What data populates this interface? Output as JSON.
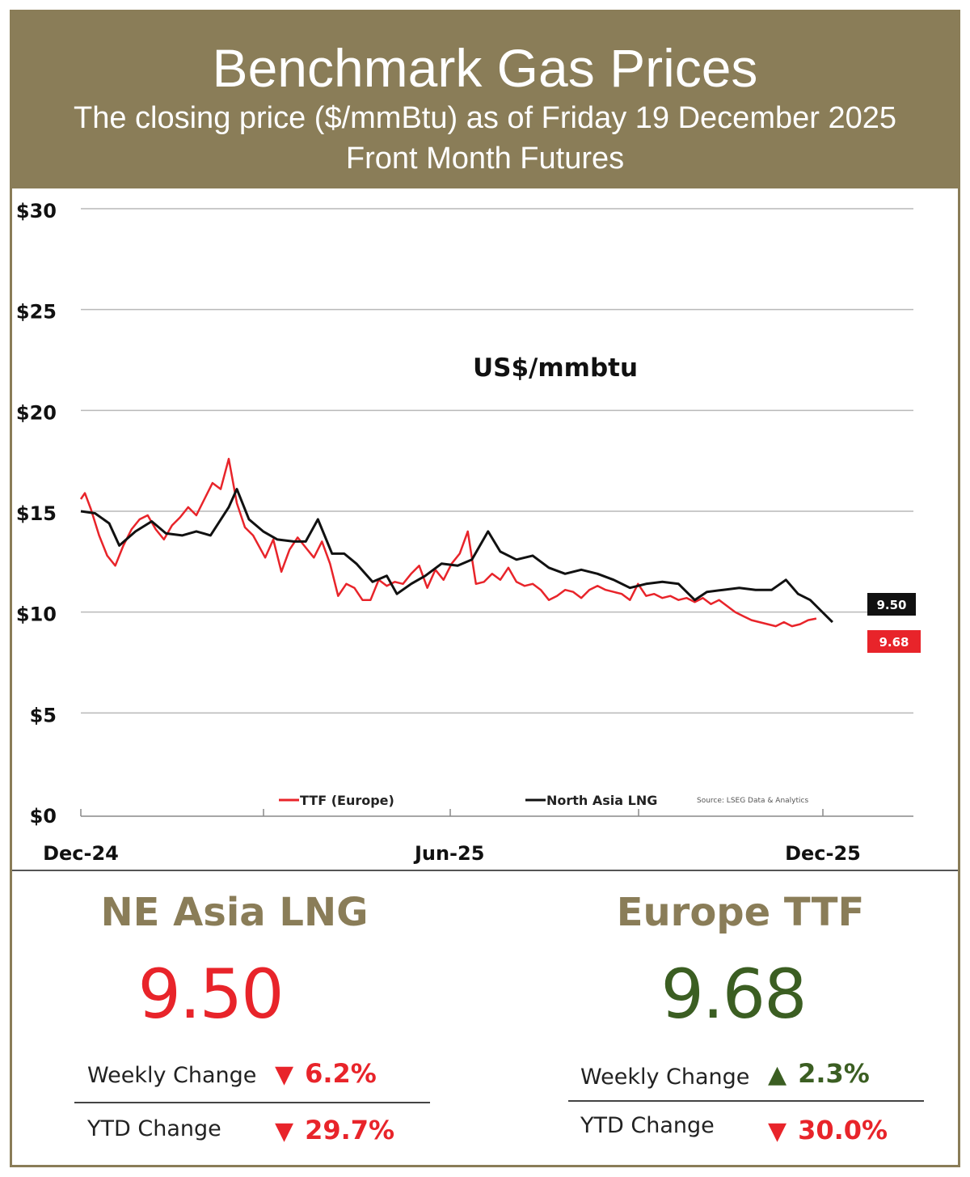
{
  "header": {
    "title": "Benchmark Gas Prices",
    "subtitle": "The closing price ($/mmBtu) as of Friday 19 December 2025",
    "subtitle2": "Front Month  Futures",
    "background": "#8a7d58"
  },
  "chart_data": {
    "type": "line",
    "title": "US$/mmbtu",
    "y_tick_labels": [
      "$0",
      "$5",
      "$10",
      "$15",
      "$20",
      "$25",
      "$30"
    ],
    "y_ticks": [
      0,
      5,
      10,
      15,
      20,
      25,
      30
    ],
    "ylim": [
      0,
      30
    ],
    "x_tick_labels": [
      "Dec-24",
      "Jun-25",
      "Dec-25"
    ],
    "x_tick_dates": [
      "2024-12-01",
      "2025-06-01",
      "2025-12-01"
    ],
    "xlim": [
      "2024-12-01",
      "2025-12-19"
    ],
    "grid": true,
    "legend_position": "bottom",
    "source_note": "Source: LSEG Data & Analytics",
    "series": [
      {
        "name": "TTF (Europe)",
        "color": "#e8242a",
        "end_label": "9.68",
        "points": [
          [
            "2024-12-01",
            15.6
          ],
          [
            "2024-12-03",
            15.9
          ],
          [
            "2024-12-06",
            15.1
          ],
          [
            "2024-12-10",
            13.8
          ],
          [
            "2024-12-14",
            12.8
          ],
          [
            "2024-12-18",
            12.3
          ],
          [
            "2024-12-22",
            13.3
          ],
          [
            "2024-12-26",
            14.1
          ],
          [
            "2024-12-30",
            14.6
          ],
          [
            "2025-01-03",
            14.8
          ],
          [
            "2025-01-07",
            14.1
          ],
          [
            "2025-01-11",
            13.6
          ],
          [
            "2025-01-15",
            14.3
          ],
          [
            "2025-01-19",
            14.7
          ],
          [
            "2025-01-23",
            15.2
          ],
          [
            "2025-01-27",
            14.8
          ],
          [
            "2025-01-31",
            15.6
          ],
          [
            "2025-02-04",
            16.4
          ],
          [
            "2025-02-08",
            16.1
          ],
          [
            "2025-02-12",
            17.6
          ],
          [
            "2025-02-16",
            15.4
          ],
          [
            "2025-02-20",
            14.2
          ],
          [
            "2025-02-24",
            13.8
          ],
          [
            "2025-03-02",
            12.7
          ],
          [
            "2025-03-06",
            13.6
          ],
          [
            "2025-03-10",
            12.0
          ],
          [
            "2025-03-14",
            13.1
          ],
          [
            "2025-03-18",
            13.7
          ],
          [
            "2025-03-22",
            13.2
          ],
          [
            "2025-03-26",
            12.7
          ],
          [
            "2025-03-30",
            13.5
          ],
          [
            "2025-04-03",
            12.4
          ],
          [
            "2025-04-07",
            10.8
          ],
          [
            "2025-04-11",
            11.4
          ],
          [
            "2025-04-15",
            11.2
          ],
          [
            "2025-04-19",
            10.6
          ],
          [
            "2025-04-23",
            10.6
          ],
          [
            "2025-04-27",
            11.6
          ],
          [
            "2025-05-01",
            11.3
          ],
          [
            "2025-05-05",
            11.5
          ],
          [
            "2025-05-09",
            11.4
          ],
          [
            "2025-05-13",
            11.9
          ],
          [
            "2025-05-17",
            12.3
          ],
          [
            "2025-05-21",
            11.2
          ],
          [
            "2025-05-25",
            12.1
          ],
          [
            "2025-05-29",
            11.6
          ],
          [
            "2025-06-02",
            12.4
          ],
          [
            "2025-06-06",
            12.9
          ],
          [
            "2025-06-10",
            14.0
          ],
          [
            "2025-06-14",
            11.4
          ],
          [
            "2025-06-18",
            11.5
          ],
          [
            "2025-06-22",
            11.9
          ],
          [
            "2025-06-26",
            11.6
          ],
          [
            "2025-06-30",
            12.2
          ],
          [
            "2025-07-04",
            11.5
          ],
          [
            "2025-07-08",
            11.3
          ],
          [
            "2025-07-12",
            11.4
          ],
          [
            "2025-07-16",
            11.1
          ],
          [
            "2025-07-20",
            10.6
          ],
          [
            "2025-07-24",
            10.8
          ],
          [
            "2025-07-28",
            11.1
          ],
          [
            "2025-08-01",
            11.0
          ],
          [
            "2025-08-05",
            10.7
          ],
          [
            "2025-08-09",
            11.1
          ],
          [
            "2025-08-13",
            11.3
          ],
          [
            "2025-08-17",
            11.1
          ],
          [
            "2025-08-21",
            11.0
          ],
          [
            "2025-08-25",
            10.9
          ],
          [
            "2025-08-29",
            10.6
          ],
          [
            "2025-09-02",
            11.4
          ],
          [
            "2025-09-06",
            10.8
          ],
          [
            "2025-09-10",
            10.9
          ],
          [
            "2025-09-14",
            10.7
          ],
          [
            "2025-09-18",
            10.8
          ],
          [
            "2025-09-22",
            10.6
          ],
          [
            "2025-09-26",
            10.7
          ],
          [
            "2025-09-30",
            10.5
          ],
          [
            "2025-10-04",
            10.7
          ],
          [
            "2025-10-08",
            10.4
          ],
          [
            "2025-10-12",
            10.6
          ],
          [
            "2025-10-16",
            10.3
          ],
          [
            "2025-10-20",
            10.0
          ],
          [
            "2025-10-24",
            9.8
          ],
          [
            "2025-10-28",
            9.6
          ],
          [
            "2025-11-01",
            9.5
          ],
          [
            "2025-11-05",
            9.4
          ],
          [
            "2025-11-09",
            9.3
          ],
          [
            "2025-11-13",
            9.5
          ],
          [
            "2025-11-17",
            9.3
          ],
          [
            "2025-11-21",
            9.4
          ],
          [
            "2025-11-25",
            9.6
          ],
          [
            "2025-11-29",
            9.68
          ]
        ]
      },
      {
        "name": "North Asia LNG",
        "color": "#111111",
        "end_label": "9.50",
        "points": [
          [
            "2024-12-01",
            15.0
          ],
          [
            "2024-12-08",
            14.9
          ],
          [
            "2024-12-15",
            14.4
          ],
          [
            "2024-12-20",
            13.3
          ],
          [
            "2024-12-28",
            14.0
          ],
          [
            "2025-01-05",
            14.5
          ],
          [
            "2025-01-12",
            13.9
          ],
          [
            "2025-01-20",
            13.8
          ],
          [
            "2025-01-27",
            14.0
          ],
          [
            "2025-02-03",
            13.8
          ],
          [
            "2025-02-12",
            15.2
          ],
          [
            "2025-02-16",
            16.1
          ],
          [
            "2025-02-22",
            14.6
          ],
          [
            "2025-03-01",
            14.0
          ],
          [
            "2025-03-08",
            13.6
          ],
          [
            "2025-03-16",
            13.5
          ],
          [
            "2025-03-22",
            13.5
          ],
          [
            "2025-03-28",
            14.6
          ],
          [
            "2025-04-04",
            12.9
          ],
          [
            "2025-04-10",
            12.9
          ],
          [
            "2025-04-16",
            12.4
          ],
          [
            "2025-04-24",
            11.5
          ],
          [
            "2025-05-01",
            11.8
          ],
          [
            "2025-05-06",
            10.9
          ],
          [
            "2025-05-13",
            11.4
          ],
          [
            "2025-05-20",
            11.8
          ],
          [
            "2025-05-28",
            12.4
          ],
          [
            "2025-06-05",
            12.3
          ],
          [
            "2025-06-12",
            12.6
          ],
          [
            "2025-06-20",
            14.0
          ],
          [
            "2025-06-26",
            13.0
          ],
          [
            "2025-07-04",
            12.6
          ],
          [
            "2025-07-12",
            12.8
          ],
          [
            "2025-07-20",
            12.2
          ],
          [
            "2025-07-28",
            11.9
          ],
          [
            "2025-08-05",
            12.1
          ],
          [
            "2025-08-13",
            11.9
          ],
          [
            "2025-08-21",
            11.6
          ],
          [
            "2025-08-29",
            11.2
          ],
          [
            "2025-09-06",
            11.4
          ],
          [
            "2025-09-14",
            11.5
          ],
          [
            "2025-09-22",
            11.4
          ],
          [
            "2025-09-30",
            10.6
          ],
          [
            "2025-10-06",
            11.0
          ],
          [
            "2025-10-14",
            11.1
          ],
          [
            "2025-10-22",
            11.2
          ],
          [
            "2025-10-30",
            11.1
          ],
          [
            "2025-11-07",
            11.1
          ],
          [
            "2025-11-14",
            11.6
          ],
          [
            "2025-11-20",
            10.9
          ],
          [
            "2025-11-26",
            10.6
          ],
          [
            "2025-12-03",
            9.9
          ],
          [
            "2025-12-07",
            9.5
          ]
        ]
      }
    ]
  },
  "panels": [
    {
      "title": "NE Asia LNG",
      "value": "9.50",
      "value_color": "#e8242a",
      "weekly_label": "Weekly Change",
      "weekly_arrow": "▼",
      "weekly_direction": "down",
      "weekly_value": "6.2%",
      "weekly_color": "#e8242a",
      "ytd_label": "YTD Change",
      "ytd_arrow": "▼",
      "ytd_direction": "down",
      "ytd_value": "29.7%",
      "ytd_color": "#e8242a"
    },
    {
      "title": "Europe TTF",
      "value": "9.68",
      "value_color": "#3b5e22",
      "weekly_label": "Weekly Change",
      "weekly_arrow": "▲",
      "weekly_direction": "up",
      "weekly_value": "2.3%",
      "weekly_color": "#3b5e22",
      "ytd_label": "YTD Change",
      "ytd_arrow": "▼",
      "ytd_direction": "down",
      "ytd_value": "30.0%",
      "ytd_color": "#e8242a"
    }
  ]
}
